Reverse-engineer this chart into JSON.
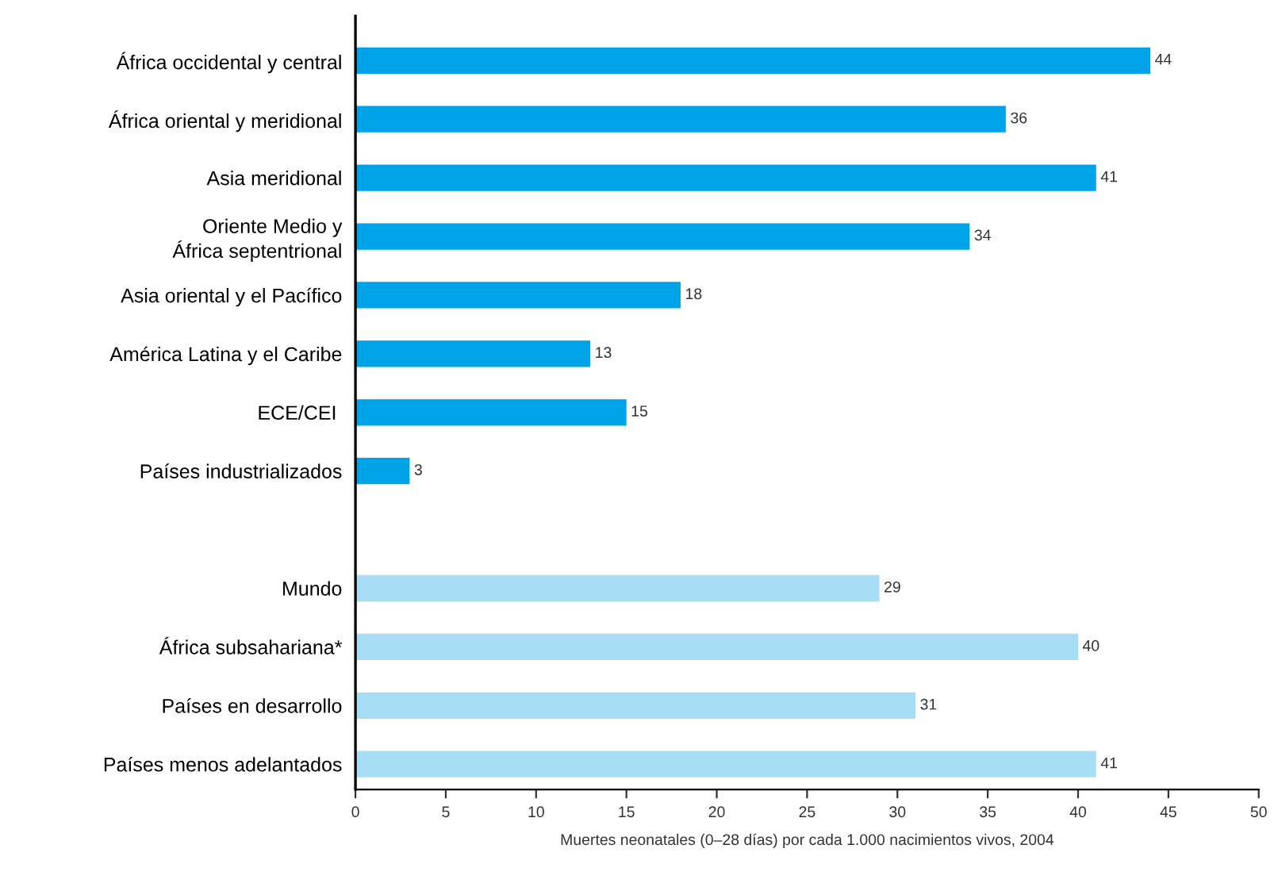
{
  "chart_data": {
    "type": "bar",
    "orientation": "horizontal",
    "categories": [
      "África occidental y central",
      "África oriental y meridional",
      "Asia meridional",
      "Oriente Medio y\nÁfrica septentrional",
      "Asia oriental y el Pacífico",
      "América Latina y el Caribe",
      "ECE/CEI ",
      "Países industrializados",
      null,
      "Mundo",
      "África subsahariana*",
      "Países en desarrollo",
      "Países menos adelantados"
    ],
    "values": [
      44,
      36,
      41,
      34,
      18,
      13,
      15,
      3,
      null,
      29,
      40,
      31,
      41
    ],
    "colors": [
      "#00a3e8",
      "#00a3e8",
      "#00a3e8",
      "#00a3e8",
      "#00a3e8",
      "#00a3e8",
      "#00a3e8",
      "#00a3e8",
      null,
      "#a8ddf6",
      "#a8ddf6",
      "#a8ddf6",
      "#a8ddf6"
    ],
    "xlabel": "Muertes neonatales (0–28 días) por cada 1.000 nacimientos vivos, 2004",
    "xlim": [
      0,
      50
    ],
    "xticks": [
      0,
      5,
      10,
      15,
      20,
      25,
      30,
      35,
      40,
      45,
      50
    ],
    "data_labels": true,
    "grid": false,
    "legend": false
  }
}
